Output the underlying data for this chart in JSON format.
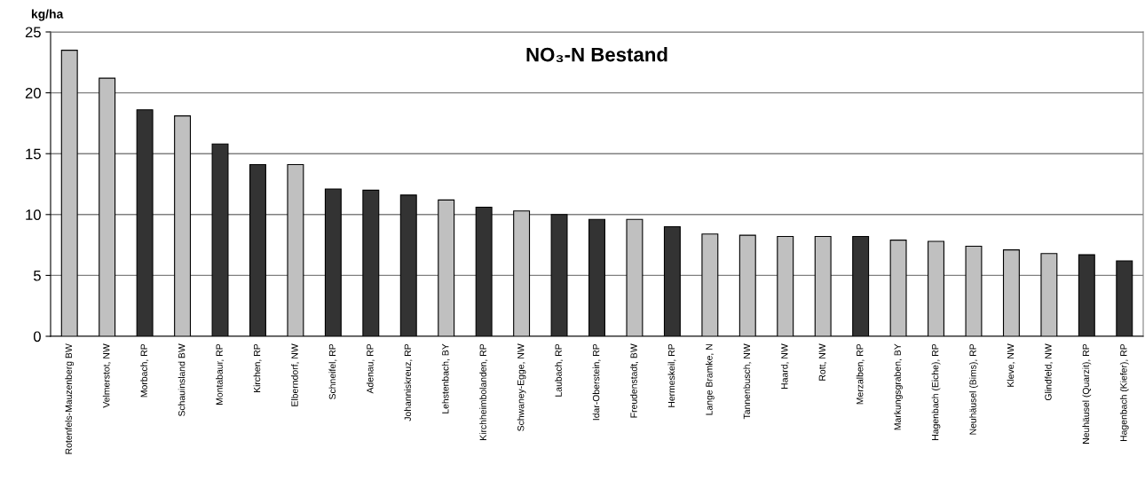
{
  "chart_data": {
    "type": "bar",
    "title": "NO₃-N Bestand",
    "ylabel": "kg/ha",
    "categories": [
      "Rotenfels-Mauzenberg BW",
      "Velmerstot, NW",
      "Morbach, RP",
      "Schauinsland BW",
      "Montabaur, RP",
      "Kirchen, RP",
      "Elberndorf, NW",
      "Schneifel, RP",
      "Adenau, RP",
      "Johanniskreuz, RP",
      "Lehstenbach, BY",
      "Kirchheimbolanden, RP",
      "Schwaney-Egge, NW",
      "Laubach, RP",
      "Idar-Oberstein, RP",
      "Freudenstadt, BW",
      "Hermeskeil, RP",
      "Lange Bramke, N",
      "Tannenbusch, NW",
      "Haard, NW",
      "Rott, NW",
      "Merzalben, RP",
      "Markungsgraben, BY",
      "Hagenbach (Eiche), RP",
      "Neuhäusel (Bims), RP",
      "Kleve, NW",
      "Glindfeld, NW",
      "Neuhäusel (Quarzit), RP",
      "Hagenbach (Kiefer), RP"
    ],
    "values": [
      23.5,
      21.2,
      18.6,
      18.1,
      15.8,
      14.1,
      14.1,
      12.1,
      12.0,
      11.6,
      11.2,
      10.6,
      10.3,
      10.0,
      9.6,
      9.6,
      9.0,
      8.4,
      8.3,
      8.2,
      8.2,
      8.2,
      7.9,
      7.8,
      7.4,
      7.1,
      6.8,
      6.7,
      6.2
    ],
    "colors": [
      "#c0c0c0",
      "#c0c0c0",
      "#333333",
      "#c0c0c0",
      "#333333",
      "#333333",
      "#c0c0c0",
      "#333333",
      "#333333",
      "#333333",
      "#c0c0c0",
      "#333333",
      "#c0c0c0",
      "#333333",
      "#333333",
      "#c0c0c0",
      "#333333",
      "#c0c0c0",
      "#c0c0c0",
      "#c0c0c0",
      "#c0c0c0",
      "#333333",
      "#c0c0c0",
      "#c0c0c0",
      "#c0c0c0",
      "#c0c0c0",
      "#c0c0c0",
      "#333333",
      "#333333"
    ],
    "ylim": [
      0,
      25
    ],
    "yticks": [
      0,
      5,
      10,
      15,
      20,
      25
    ],
    "grid": "y",
    "legend": false
  }
}
